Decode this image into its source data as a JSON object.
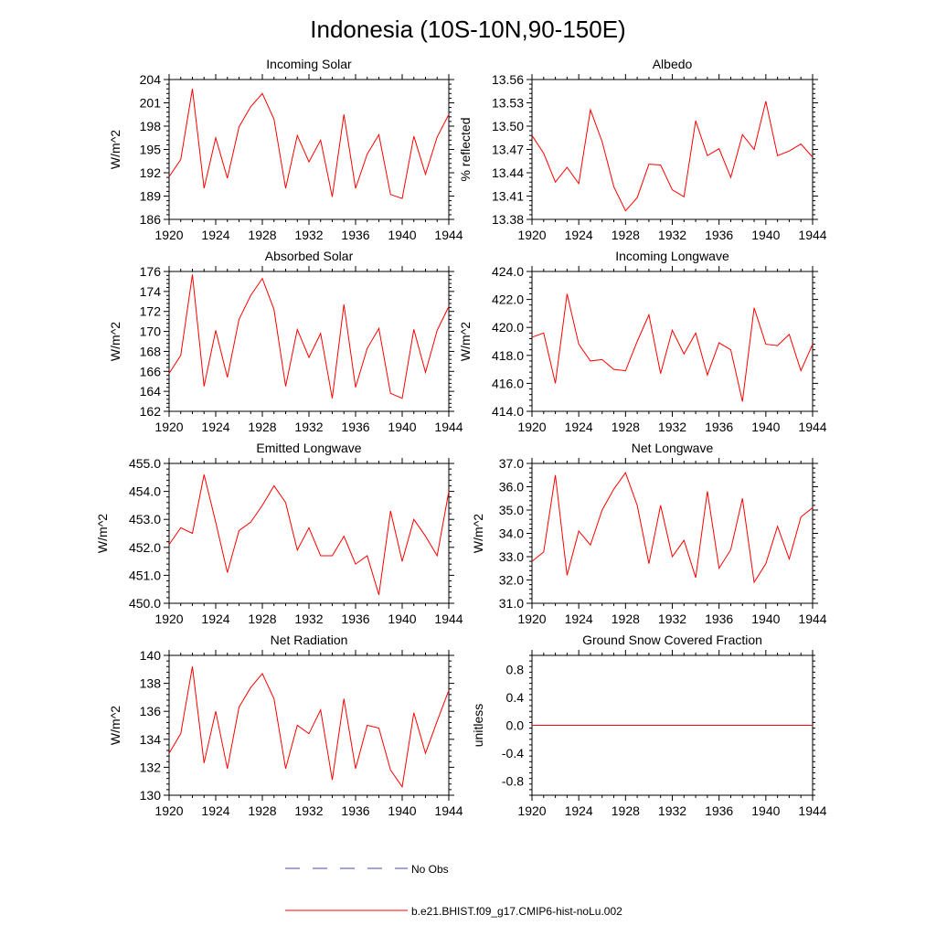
{
  "figure": {
    "title": "Indonesia (10S-10N,90-150E)"
  },
  "legend": {
    "entries": [
      {
        "label": "No Obs",
        "color": "#4a4ab8",
        "dashed": true
      },
      {
        "label": "b.e21.BHIST.f09_g17.CMIP6-hist-noLu.002",
        "color": "#ff0000",
        "dashed": false
      }
    ]
  },
  "chart_data": [
    {
      "type": "line",
      "title": "Incoming Solar",
      "ylabel": "W/m^2",
      "xlabel": "",
      "xlim": [
        1920,
        1944
      ],
      "ylim": [
        186,
        204
      ],
      "x_ticks": [
        "1920",
        "1924",
        "1928",
        "1932",
        "1936",
        "1940",
        "1944"
      ],
      "y_ticks": [
        "186",
        "189",
        "192",
        "195",
        "198",
        "201",
        "204"
      ],
      "series": [
        {
          "color": "#ff0000",
          "x": [
            1920,
            1921,
            1922,
            1923,
            1924,
            1925,
            1926,
            1927,
            1928,
            1929,
            1930,
            1931,
            1932,
            1933,
            1934,
            1935,
            1936,
            1937,
            1938,
            1939,
            1940,
            1941,
            1942,
            1943,
            1944
          ],
          "y": [
            191.5,
            193.7,
            202.8,
            190.0,
            196.5,
            191.3,
            197.9,
            200.5,
            202.2,
            198.9,
            190.0,
            196.8,
            193.4,
            196.2,
            188.9,
            199.5,
            190.0,
            194.4,
            196.9,
            189.2,
            188.7,
            196.7,
            191.8,
            196.6,
            199.5
          ]
        }
      ]
    },
    {
      "type": "line",
      "title": "Albedo",
      "ylabel": "% reflected",
      "xlabel": "",
      "xlim": [
        1920,
        1944
      ],
      "ylim": [
        13.38,
        13.56
      ],
      "x_ticks": [
        "1920",
        "1924",
        "1928",
        "1932",
        "1936",
        "1940",
        "1944"
      ],
      "y_ticks": [
        "13.38",
        "13.41",
        "13.44",
        "13.47",
        "13.50",
        "13.53",
        "13.56"
      ],
      "series": [
        {
          "color": "#ff0000",
          "x": [
            1920,
            1921,
            1922,
            1923,
            1924,
            1925,
            1926,
            1927,
            1928,
            1929,
            1930,
            1931,
            1932,
            1933,
            1934,
            1935,
            1936,
            1937,
            1938,
            1939,
            1940,
            1941,
            1942,
            1943,
            1944
          ],
          "y": [
            13.488,
            13.465,
            13.428,
            13.447,
            13.426,
            13.521,
            13.48,
            13.422,
            13.391,
            13.408,
            13.451,
            13.45,
            13.418,
            13.409,
            13.507,
            13.462,
            13.471,
            13.434,
            13.489,
            13.47,
            13.532,
            13.462,
            13.468,
            13.477,
            13.46
          ]
        }
      ]
    },
    {
      "type": "line",
      "title": "Absorbed Solar",
      "ylabel": "W/m^2",
      "xlabel": "",
      "xlim": [
        1920,
        1944
      ],
      "ylim": [
        162,
        176
      ],
      "x_ticks": [
        "1920",
        "1924",
        "1928",
        "1932",
        "1936",
        "1940",
        "1944"
      ],
      "y_ticks": [
        "162",
        "164",
        "166",
        "168",
        "170",
        "172",
        "174",
        "176"
      ],
      "series": [
        {
          "color": "#ff0000",
          "x": [
            1920,
            1921,
            1922,
            1923,
            1924,
            1925,
            1926,
            1927,
            1928,
            1929,
            1930,
            1931,
            1932,
            1933,
            1934,
            1935,
            1936,
            1937,
            1938,
            1939,
            1940,
            1941,
            1942,
            1943,
            1944
          ],
          "y": [
            165.8,
            167.6,
            175.7,
            164.5,
            170.1,
            165.4,
            171.2,
            173.6,
            175.3,
            172.2,
            164.5,
            170.2,
            167.4,
            169.8,
            163.3,
            172.7,
            164.4,
            168.3,
            170.3,
            163.8,
            163.3,
            170.2,
            165.9,
            170.1,
            172.5
          ]
        }
      ]
    },
    {
      "type": "line",
      "title": "Incoming Longwave",
      "ylabel": "W/m^2",
      "xlabel": "",
      "xlim": [
        1920,
        1944
      ],
      "ylim": [
        414.0,
        424.0
      ],
      "x_ticks": [
        "1920",
        "1924",
        "1928",
        "1932",
        "1936",
        "1940",
        "1944"
      ],
      "y_ticks": [
        "414.0",
        "416.0",
        "418.0",
        "420.0",
        "422.0",
        "424.0"
      ],
      "series": [
        {
          "color": "#ff0000",
          "x": [
            1920,
            1921,
            1922,
            1923,
            1924,
            1925,
            1926,
            1927,
            1928,
            1929,
            1930,
            1931,
            1932,
            1933,
            1934,
            1935,
            1936,
            1937,
            1938,
            1939,
            1940,
            1941,
            1942,
            1943,
            1944
          ],
          "y": [
            419.3,
            419.6,
            416.0,
            422.4,
            418.8,
            417.6,
            417.7,
            417.0,
            416.9,
            419.0,
            420.9,
            416.7,
            419.8,
            418.1,
            419.6,
            416.6,
            418.9,
            418.4,
            414.7,
            421.4,
            418.8,
            418.7,
            419.5,
            416.9,
            418.8
          ]
        }
      ]
    },
    {
      "type": "line",
      "title": "Emitted Longwave",
      "ylabel": "W/m^2",
      "xlabel": "",
      "xlim": [
        1920,
        1944
      ],
      "ylim": [
        450.0,
        455.0
      ],
      "x_ticks": [
        "1920",
        "1924",
        "1928",
        "1932",
        "1936",
        "1940",
        "1944"
      ],
      "y_ticks": [
        "450.0",
        "451.0",
        "452.0",
        "453.0",
        "454.0",
        "455.0"
      ],
      "series": [
        {
          "color": "#ff0000",
          "x": [
            1920,
            1921,
            1922,
            1923,
            1924,
            1925,
            1926,
            1927,
            1928,
            1929,
            1930,
            1931,
            1932,
            1933,
            1934,
            1935,
            1936,
            1937,
            1938,
            1939,
            1940,
            1941,
            1942,
            1943,
            1944
          ],
          "y": [
            452.1,
            452.7,
            452.5,
            454.6,
            452.9,
            451.1,
            452.6,
            452.9,
            453.5,
            454.2,
            453.6,
            451.9,
            452.7,
            451.7,
            451.7,
            452.4,
            451.4,
            451.7,
            450.3,
            453.3,
            451.5,
            453.0,
            452.4,
            451.7,
            454.0
          ]
        }
      ]
    },
    {
      "type": "line",
      "title": "Net Longwave",
      "ylabel": "W/m^2",
      "xlabel": "",
      "xlim": [
        1920,
        1944
      ],
      "ylim": [
        31.0,
        37.0
      ],
      "x_ticks": [
        "1920",
        "1924",
        "1928",
        "1932",
        "1936",
        "1940",
        "1944"
      ],
      "y_ticks": [
        "31.0",
        "32.0",
        "33.0",
        "34.0",
        "35.0",
        "36.0",
        "37.0"
      ],
      "series": [
        {
          "color": "#ff0000",
          "x": [
            1920,
            1921,
            1922,
            1923,
            1924,
            1925,
            1926,
            1927,
            1928,
            1929,
            1930,
            1931,
            1932,
            1933,
            1934,
            1935,
            1936,
            1937,
            1938,
            1939,
            1940,
            1941,
            1942,
            1943,
            1944
          ],
          "y": [
            32.8,
            33.2,
            36.5,
            32.2,
            34.1,
            33.5,
            35.0,
            35.9,
            36.6,
            35.2,
            32.7,
            35.2,
            33.0,
            33.7,
            32.1,
            35.8,
            32.5,
            33.3,
            35.5,
            31.9,
            32.7,
            34.3,
            32.9,
            34.7,
            35.1
          ]
        }
      ]
    },
    {
      "type": "line",
      "title": "Net Radiation",
      "ylabel": "W/m^2",
      "xlabel": "",
      "xlim": [
        1920,
        1944
      ],
      "ylim": [
        130,
        140
      ],
      "x_ticks": [
        "1920",
        "1924",
        "1928",
        "1932",
        "1936",
        "1940",
        "1944"
      ],
      "y_ticks": [
        "130",
        "132",
        "134",
        "136",
        "138",
        "140"
      ],
      "series": [
        {
          "color": "#ff0000",
          "x": [
            1920,
            1921,
            1922,
            1923,
            1924,
            1925,
            1926,
            1927,
            1928,
            1929,
            1930,
            1931,
            1932,
            1933,
            1934,
            1935,
            1936,
            1937,
            1938,
            1939,
            1940,
            1941,
            1942,
            1943,
            1944
          ],
          "y": [
            133.0,
            134.4,
            139.2,
            132.3,
            136.0,
            131.9,
            136.3,
            137.7,
            138.7,
            136.9,
            131.9,
            135.0,
            134.4,
            136.1,
            131.1,
            136.9,
            131.9,
            135.0,
            134.8,
            131.8,
            130.6,
            135.9,
            133.0,
            135.3,
            137.5
          ]
        }
      ]
    },
    {
      "type": "line",
      "title": "Ground Snow Covered Fraction",
      "ylabel": "unitless",
      "xlabel": "",
      "xlim": [
        1920,
        1944
      ],
      "ylim": [
        -1.0,
        1.0
      ],
      "x_ticks": [
        "1920",
        "1924",
        "1928",
        "1932",
        "1936",
        "1940",
        "1944"
      ],
      "y_ticks": [
        "-0.8",
        "-0.4",
        "0.0",
        "0.4",
        "0.8"
      ],
      "series": [
        {
          "color": "#ff0000",
          "x": [
            1920,
            1944
          ],
          "y": [
            0.0,
            0.0
          ]
        }
      ]
    }
  ]
}
